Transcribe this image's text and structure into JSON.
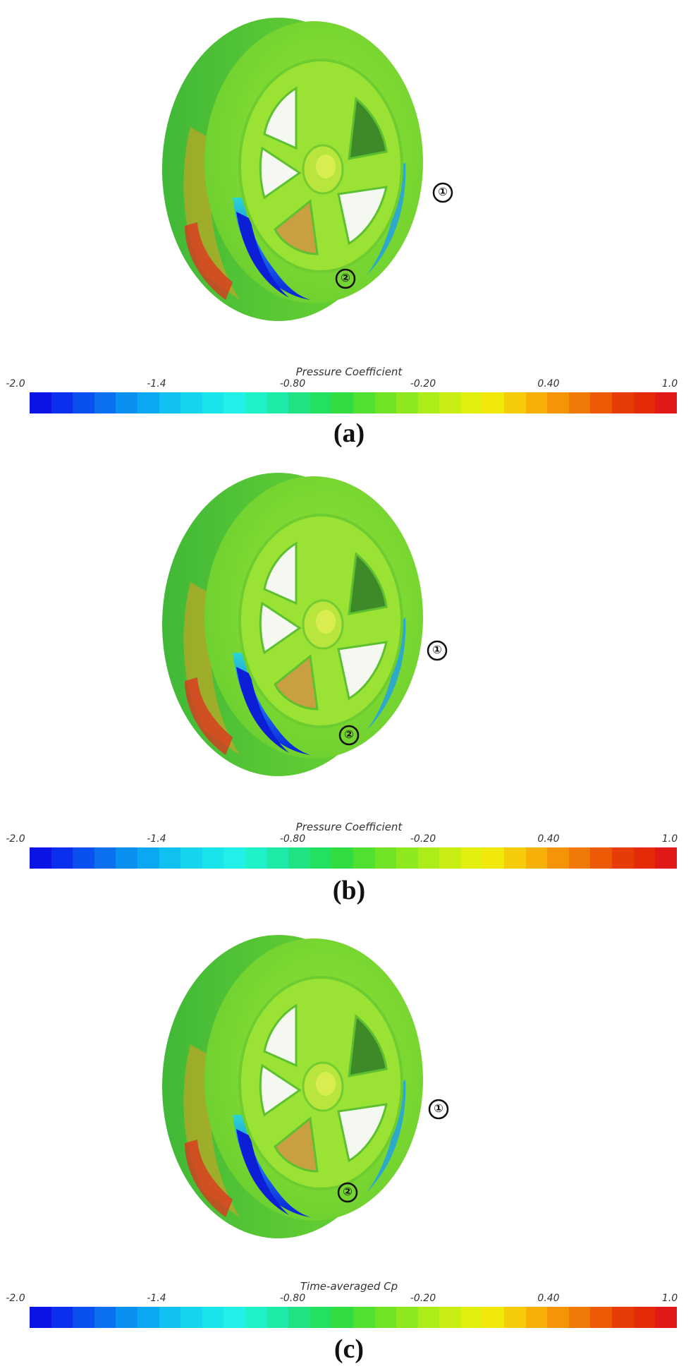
{
  "panels": [
    {
      "caption": "(a)",
      "colorbar_title": "Pressure Coefficient",
      "markers": [
        "①",
        "②"
      ]
    },
    {
      "caption": "(b)",
      "colorbar_title": "Pressure Coefficient",
      "markers": [
        "①",
        "②"
      ]
    },
    {
      "caption": "(c)",
      "colorbar_title": "Time-averaged Cp",
      "markers": [
        "①",
        "②"
      ]
    }
  ],
  "colorbar": {
    "ticks": [
      "-2.0",
      "-1.4",
      "-0.80",
      "-0.20",
      "0.40",
      "1.0"
    ],
    "range": [
      -2.0,
      1.0
    ],
    "colors": [
      "#0a14e6",
      "#0a30ee",
      "#0a50f0",
      "#0a70f0",
      "#0a90f0",
      "#0aa8f0",
      "#10c0f0",
      "#14d4ee",
      "#18e4ec",
      "#20f0e8",
      "#1ef0c8",
      "#1eeaa8",
      "#20e484",
      "#24e060",
      "#30dc40",
      "#50e030",
      "#70e424",
      "#8ee81e",
      "#acec18",
      "#c8ee14",
      "#e2f010",
      "#f2e80c",
      "#f6cc0a",
      "#f6b008",
      "#f49406",
      "#f07806",
      "#ec5a06",
      "#e83c06",
      "#e42a08",
      "#e01818"
    ],
    "accent_colors": {
      "wheel_base": "#62d032",
      "rim_face": "#8ee030",
      "low_pressure": "#1230e0",
      "high_pressure": "#e03020"
    }
  }
}
